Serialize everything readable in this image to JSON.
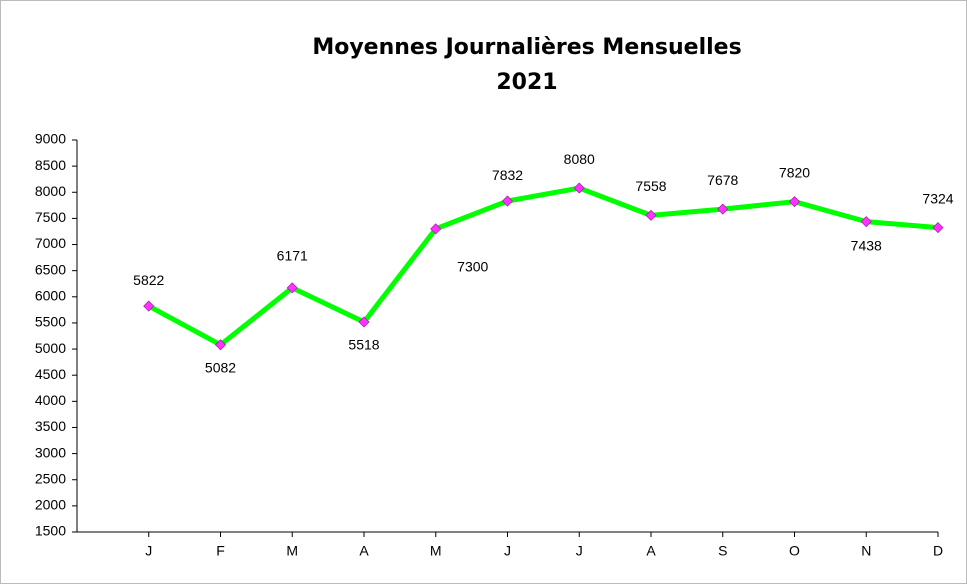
{
  "chart_data": {
    "type": "line",
    "title": [
      "Moyennes Journalières Mensuelles",
      "2021"
    ],
    "categories": [
      "J",
      "F",
      "M",
      "A",
      "M",
      "J",
      "J",
      "A",
      "S",
      "O",
      "N",
      "D"
    ],
    "series": [
      {
        "color": "#00ff00",
        "marker_color": "#ff33ff",
        "values": [
          5822,
          5082,
          6171,
          5518,
          7300,
          7832,
          8080,
          7558,
          7678,
          7820,
          7438,
          7324
        ]
      }
    ],
    "ylim": [
      1500,
      9000
    ],
    "yticks": [
      1500,
      2000,
      2500,
      3000,
      3500,
      4000,
      4500,
      5000,
      5500,
      6000,
      6500,
      7000,
      7500,
      8000,
      8500,
      9000
    ]
  }
}
